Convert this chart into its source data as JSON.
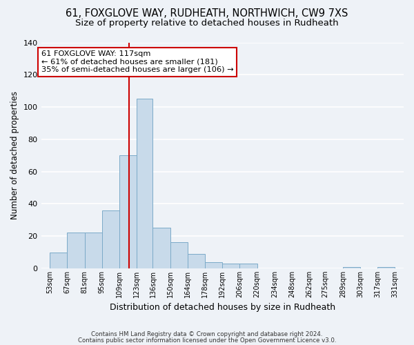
{
  "title_line1": "61, FOXGLOVE WAY, RUDHEATH, NORTHWICH, CW9 7XS",
  "title_line2": "Size of property relative to detached houses in Rudheath",
  "xlabel": "Distribution of detached houses by size in Rudheath",
  "ylabel": "Number of detached properties",
  "bar_edges": [
    53,
    67,
    81,
    95,
    109,
    123,
    136,
    150,
    164,
    178,
    192,
    206,
    220,
    234,
    248,
    262,
    275,
    289,
    303,
    317,
    331
  ],
  "bar_heights": [
    10,
    22,
    22,
    36,
    70,
    105,
    25,
    16,
    9,
    4,
    3,
    3,
    0,
    0,
    0,
    0,
    0,
    1,
    0,
    1
  ],
  "bar_color": "#c8daea",
  "bar_edge_color": "#7baac8",
  "vline_x": 117,
  "vline_color": "#cc0000",
  "annotation_title": "61 FOXGLOVE WAY: 117sqm",
  "annotation_line1": "← 61% of detached houses are smaller (181)",
  "annotation_line2": "35% of semi-detached houses are larger (106) →",
  "annotation_box_color": "#ffffff",
  "annotation_box_edge": "#cc0000",
  "ylim": [
    0,
    140
  ],
  "xlim": [
    46,
    338
  ],
  "tick_labels": [
    "53sqm",
    "67sqm",
    "81sqm",
    "95sqm",
    "109sqm",
    "123sqm",
    "136sqm",
    "150sqm",
    "164sqm",
    "178sqm",
    "192sqm",
    "206sqm",
    "220sqm",
    "234sqm",
    "248sqm",
    "262sqm",
    "275sqm",
    "289sqm",
    "303sqm",
    "317sqm",
    "331sqm"
  ],
  "footnote1": "Contains HM Land Registry data © Crown copyright and database right 2024.",
  "footnote2": "Contains public sector information licensed under the Open Government Licence v3.0.",
  "background_color": "#eef2f7",
  "grid_color": "#ffffff",
  "title_fontsize": 10.5,
  "subtitle_fontsize": 9.5,
  "annotation_fontsize": 8.2
}
